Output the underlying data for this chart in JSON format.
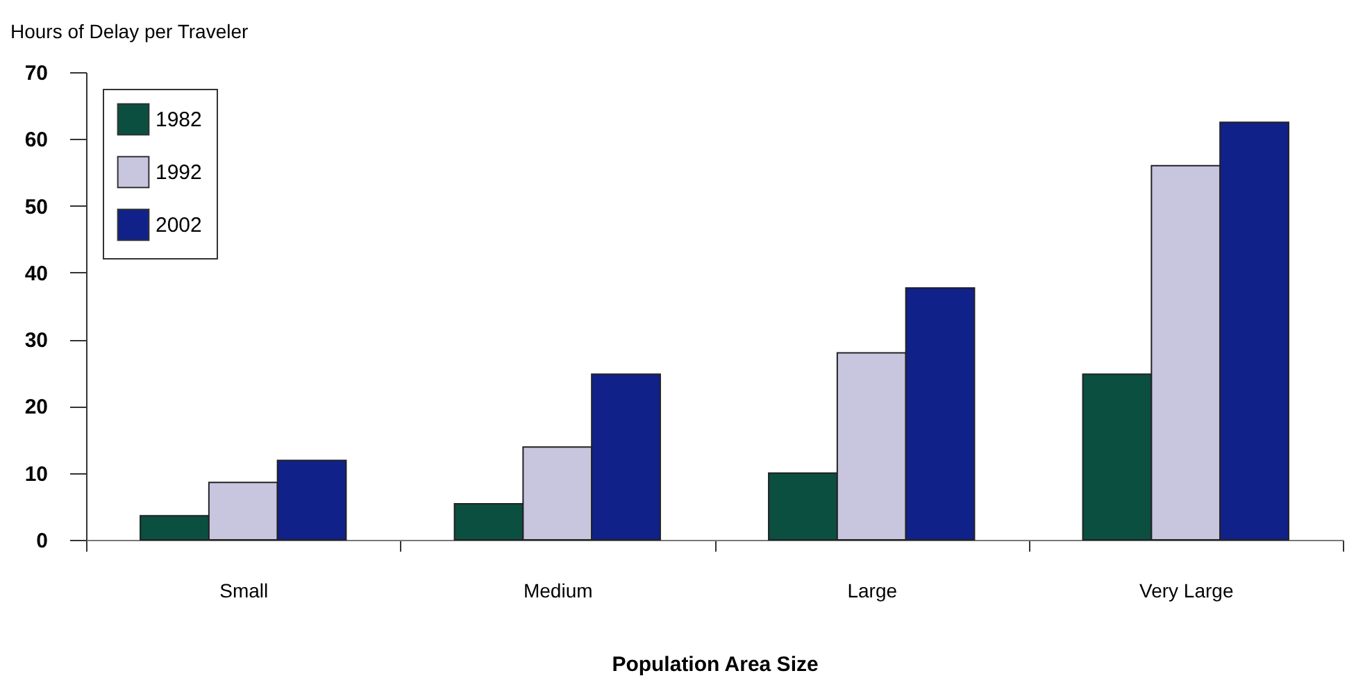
{
  "chart_data": {
    "type": "bar",
    "ylabel": "Hours of Delay per Traveler",
    "xlabel": "Population Area Size",
    "categories": [
      "Small",
      "Medium",
      "Large",
      "Very Large"
    ],
    "series": [
      {
        "name": "1982",
        "color": "#0b4f41",
        "values": [
          3.6,
          5.4,
          10.0,
          24.8
        ]
      },
      {
        "name": "1992",
        "color": "#c8c5df",
        "values": [
          8.6,
          13.9,
          28.0,
          56.0
        ]
      },
      {
        "name": "2002",
        "color": "#10218a",
        "values": [
          11.9,
          24.8,
          37.7,
          62.5
        ]
      }
    ],
    "ylim": [
      0,
      70
    ],
    "yticks": [
      0,
      10,
      20,
      30,
      40,
      50,
      60,
      70
    ],
    "legend": "top left"
  }
}
